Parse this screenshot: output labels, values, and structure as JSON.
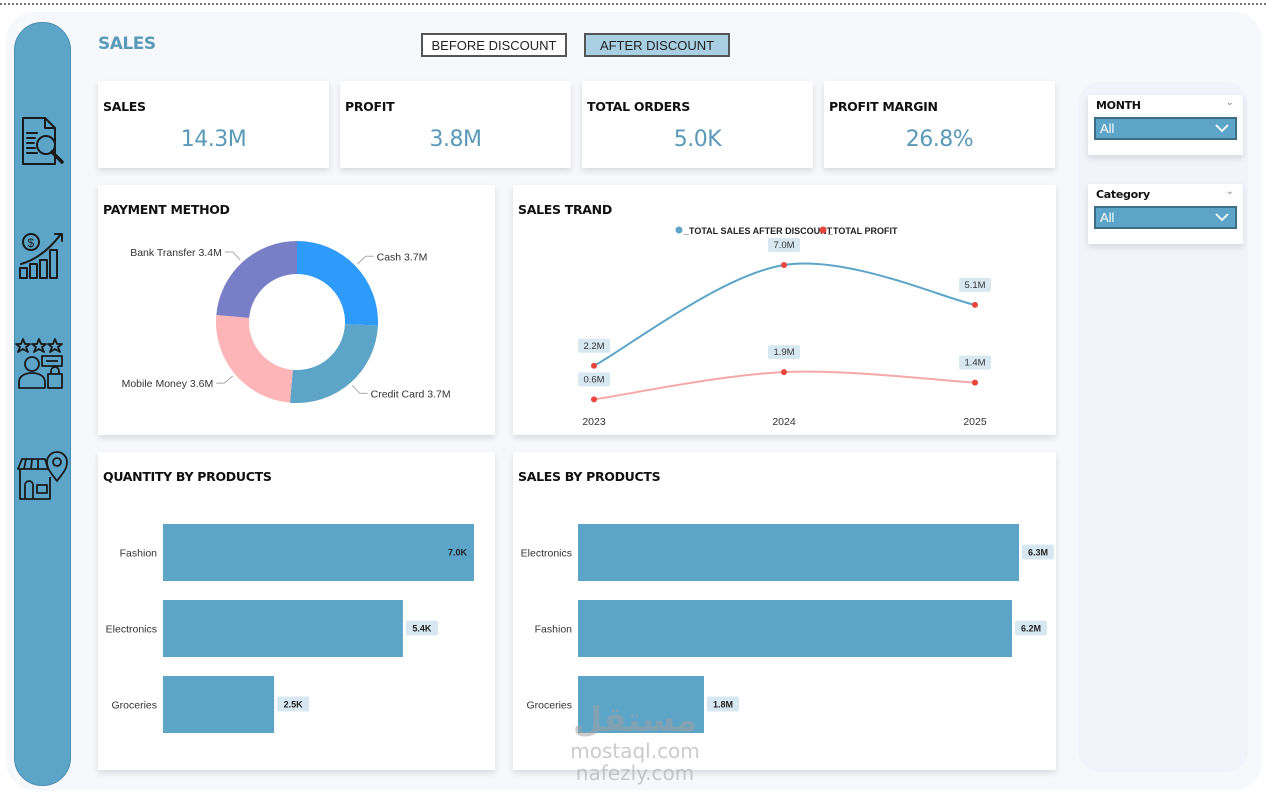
{
  "header": {
    "title": "SALES",
    "buttons": {
      "before_discount": "BEFORE DISCOUNT",
      "after_discount": "AFTER DISCOUNT"
    },
    "active_button": "after_discount"
  },
  "sidebar": {
    "items": [
      {
        "icon": "report-search-icon",
        "label": "Report overview"
      },
      {
        "icon": "sales-growth-icon",
        "label": "Sales"
      },
      {
        "icon": "customer-rating-icon",
        "label": "Customers"
      },
      {
        "icon": "store-location-icon",
        "label": "Stores"
      }
    ]
  },
  "kpis": [
    {
      "title": "SALES",
      "value": "14.3M"
    },
    {
      "title": "PROFIT",
      "value": "3.8M"
    },
    {
      "title": "TOTAL ORDERS",
      "value": "5.0K"
    },
    {
      "title": "PROFIT MARGIN",
      "value": "26.8%"
    }
  ],
  "filters": {
    "month": {
      "label": "MONTH",
      "value": "All"
    },
    "category": {
      "label": "Category",
      "value": "All"
    }
  },
  "colors": {
    "accent": "#5ca5c8",
    "kpi_value": "#5a9ab8",
    "cash": "#2e9bfa",
    "credit_card": "#5ca5c8",
    "mobile_money": "#fdb5b7",
    "bank_transfer": "#787fc6",
    "sales_line": "#5ca5c8",
    "profit_line": "#f4a8a8",
    "marker": "#e8453c",
    "label_bg": "#d7e8f1"
  },
  "watermark": {
    "line1": "مستقل",
    "line2": "mostaql.com",
    "line3": "nafezly.com"
  },
  "chart_data": [
    {
      "id": "payment_method",
      "type": "pie",
      "title": "PAYMENT METHOD",
      "donut": true,
      "slices": [
        {
          "label": "Cash",
          "value": 3.7,
          "display": "3.7M"
        },
        {
          "label": "Credit Card",
          "value": 3.7,
          "display": "3.7M"
        },
        {
          "label": "Mobile Money",
          "value": 3.6,
          "display": "3.6M"
        },
        {
          "label": "Bank Transfer",
          "value": 3.4,
          "display": "3.4M"
        }
      ],
      "units": "M"
    },
    {
      "id": "sales_trend",
      "type": "line",
      "title": "SALES TRAND",
      "x": [
        "2023",
        "2024",
        "2025"
      ],
      "series": [
        {
          "name": "_TOTAL SALES AFTER DISCOUNT",
          "values": [
            2.2,
            7.0,
            5.1
          ],
          "labels": [
            "2.2M",
            "7.0M",
            "5.1M"
          ]
        },
        {
          "name": "_TOTAL PROFIT",
          "values": [
            0.6,
            1.9,
            1.4
          ],
          "labels": [
            "0.6M",
            "1.9M",
            "1.4M"
          ]
        }
      ],
      "legend": "top-center",
      "grid": false,
      "ylim": [
        0,
        7.5
      ]
    },
    {
      "id": "quantity_by_products",
      "type": "bar",
      "orientation": "horizontal",
      "title": "QUANTITY BY PRODUCTS",
      "categories": [
        "Fashion",
        "Electronics",
        "Groceries"
      ],
      "values": [
        7.0,
        5.4,
        2.5
      ],
      "labels": [
        "7.0K",
        "5.4K",
        "2.5K"
      ],
      "units": "K",
      "xlim": [
        0,
        7.0
      ]
    },
    {
      "id": "sales_by_products",
      "type": "bar",
      "orientation": "horizontal",
      "title": "SALES BY PRODUCTS",
      "categories": [
        "Electronics",
        "Fashion",
        "Groceries"
      ],
      "values": [
        6.3,
        6.2,
        1.8
      ],
      "labels": [
        "6.3M",
        "6.2M",
        "1.8M"
      ],
      "units": "M",
      "xlim": [
        0,
        6.3
      ]
    }
  ]
}
